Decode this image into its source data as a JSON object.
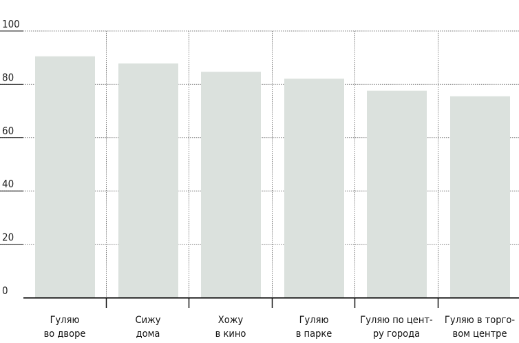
{
  "chart_data": {
    "type": "bar",
    "categories": [
      [
        "Гуляю",
        "во дворе"
      ],
      [
        "Сижу",
        "дома"
      ],
      [
        "Хожу",
        "в кино"
      ],
      [
        "Гуляю",
        "в парке"
      ],
      [
        "Гуляю по цент-",
        "ру города"
      ],
      [
        "Гуляю в торго-",
        "вом центре"
      ]
    ],
    "values": [
      90.5,
      87.8,
      84.7,
      82.1,
      77.6,
      75.5
    ],
    "ylim": [
      0,
      100
    ],
    "yticks": [
      "0",
      "20",
      "40",
      "60",
      "80",
      "100"
    ],
    "grid": true,
    "colors": {
      "bar": "#dbe1dd",
      "grid": "#777777",
      "axis": "#111111"
    }
  }
}
